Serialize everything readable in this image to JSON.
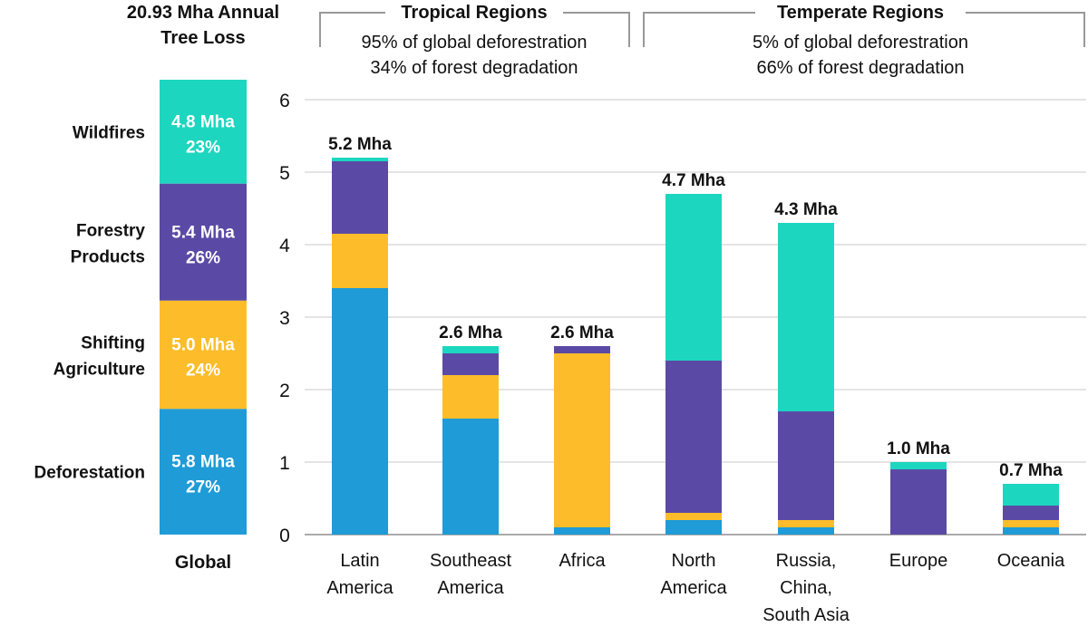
{
  "chart_data": {
    "type": "bar",
    "stacked": true,
    "global_summary": {
      "title_lines": [
        "20.93 Mha Annual",
        "Tree Loss"
      ],
      "category_label": "Global",
      "segments": [
        {
          "name_lines": [
            "Wildfires"
          ],
          "value": 4.8,
          "value_label": "4.8 Mha",
          "share_label": "23%"
        },
        {
          "name_lines": [
            "Forestry",
            "Products"
          ],
          "value": 5.4,
          "value_label": "5.4 Mha",
          "share_label": "26%"
        },
        {
          "name_lines": [
            "Shifting",
            "Agriculture"
          ],
          "value": 5.0,
          "value_label": "5.0 Mha",
          "share_label": "24%"
        },
        {
          "name_lines": [
            "Deforestation"
          ],
          "value": 5.8,
          "value_label": "5.8 Mha",
          "share_label": "27%"
        }
      ]
    },
    "groups": [
      {
        "title": "Tropical Regions",
        "lines": [
          "95% of global deforestration",
          "34% of forest degradation"
        ]
      },
      {
        "title": "Temperate Regions",
        "lines": [
          "5% of global deforestration",
          "66% of forest degradation"
        ]
      }
    ],
    "categories": [
      [
        "Latin",
        "America"
      ],
      [
        "Southeast",
        "America"
      ],
      [
        "Africa"
      ],
      [
        "North",
        "America"
      ],
      [
        "Russia,",
        "China,",
        "South Asia"
      ],
      [
        "Europe"
      ],
      [
        "Oceania"
      ]
    ],
    "series": [
      {
        "key": "deforestation",
        "values": [
          3.4,
          1.6,
          0.1,
          0.2,
          0.1,
          0.0,
          0.1
        ]
      },
      {
        "key": "shifting",
        "values": [
          0.75,
          0.6,
          2.4,
          0.1,
          0.1,
          0.0,
          0.1
        ]
      },
      {
        "key": "forestry",
        "values": [
          1.0,
          0.3,
          0.1,
          2.1,
          1.5,
          0.9,
          0.2
        ]
      },
      {
        "key": "wildfires",
        "values": [
          0.05,
          0.1,
          0.0,
          2.3,
          2.6,
          0.1,
          0.3
        ]
      }
    ],
    "totals": [
      5.2,
      2.6,
      2.6,
      4.7,
      4.3,
      1.0,
      0.7
    ],
    "total_labels": [
      "5.2 Mha",
      "2.6 Mha",
      "2.6 Mha",
      "4.7 Mha",
      "4.3 Mha",
      "1.0 Mha",
      "0.7 Mha"
    ],
    "yticks": [
      0,
      1,
      2,
      3,
      4,
      5,
      6
    ],
    "ylim": [
      0,
      6
    ],
    "grid": true,
    "colors": {
      "deforestation": "#1f9bd7",
      "shifting": "#fdbd2a",
      "forestry": "#5b4aa5",
      "wildfires": "#1dd6c0",
      "grid": "#c8c8c8",
      "bracket": "#999999"
    }
  }
}
